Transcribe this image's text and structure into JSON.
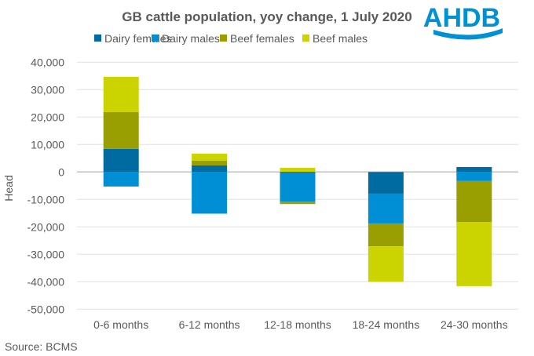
{
  "logo": "AHDB",
  "chart_data": {
    "type": "bar",
    "stacked": true,
    "title": "GB cattle population, yoy change, 1 July 2020",
    "ylabel": "Head",
    "xlabel": "",
    "ylim": [
      -50000,
      40000
    ],
    "yticks": [
      40000,
      30000,
      20000,
      10000,
      0,
      -10000,
      -20000,
      -30000,
      -40000,
      -50000
    ],
    "ytick_labels": [
      "40,000",
      "30,000",
      "20,000",
      "10,000",
      "0",
      "-10,000",
      "-20,000",
      "-30,000",
      "-40,000",
      "-50,000"
    ],
    "grid": true,
    "legend_position": "top",
    "categories": [
      "0-6 months",
      "6-12 months",
      "12-18 months",
      "18-24 months",
      "24-30 months"
    ],
    "series": [
      {
        "name": "Dairy females",
        "color": "#006ba1",
        "values": [
          8400,
          2400,
          -500,
          -7900,
          1800
        ]
      },
      {
        "name": "Dairy males",
        "color": "#008fd5",
        "values": [
          -5300,
          -15200,
          -10300,
          -10900,
          -3300
        ]
      },
      {
        "name": "Beef females",
        "color": "#999f00",
        "values": [
          13400,
          1700,
          -900,
          -8300,
          -14900
        ]
      },
      {
        "name": "Beef males",
        "color": "#cbd400",
        "values": [
          12900,
          2600,
          1500,
          -12900,
          -23400
        ]
      }
    ],
    "source": "Source:  BCMS"
  }
}
